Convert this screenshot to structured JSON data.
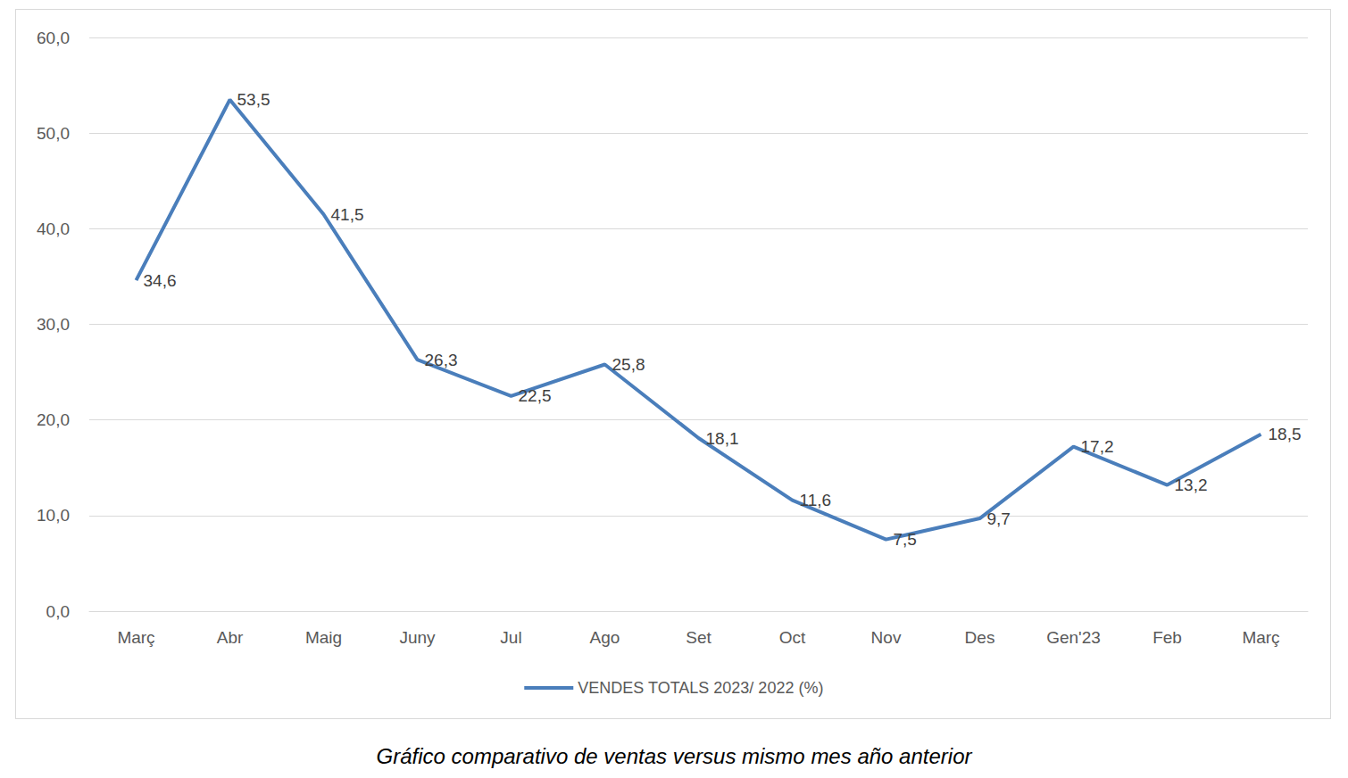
{
  "chart_data": {
    "type": "line",
    "title": "Gráfico comparativo de ventas versus mismo mes año anterior",
    "categories": [
      "Març",
      "Abr",
      "Maig",
      "Juny",
      "Jul",
      "Ago",
      "Set",
      "Oct",
      "Nov",
      "Des",
      "Gen'23",
      "Feb",
      "Març"
    ],
    "series": [
      {
        "name": "VENDES TOTALS 2023/ 2022 (%)",
        "color": "#4a7ebb",
        "values": [
          34.6,
          53.5,
          41.5,
          26.3,
          22.5,
          25.8,
          18.1,
          11.6,
          7.5,
          9.7,
          17.2,
          13.2,
          18.5
        ],
        "value_labels": [
          "34,6",
          "53,5",
          "41,5",
          "26,3",
          "22,5",
          "25,8",
          "18,1",
          "11,6",
          "7,5",
          "9,7",
          "17,2",
          "13,2",
          "18,5"
        ]
      }
    ],
    "ylim": [
      0,
      60
    ],
    "yticks": [
      {
        "value": 0,
        "label": "0,0"
      },
      {
        "value": 10,
        "label": "10,0"
      },
      {
        "value": 20,
        "label": "20,0"
      },
      {
        "value": 30,
        "label": "30,0"
      },
      {
        "value": 40,
        "label": "40,0"
      },
      {
        "value": 50,
        "label": "50,0"
      },
      {
        "value": 60,
        "label": "60,0"
      }
    ],
    "grid": true,
    "legend": "bottom",
    "data_labels": true
  }
}
